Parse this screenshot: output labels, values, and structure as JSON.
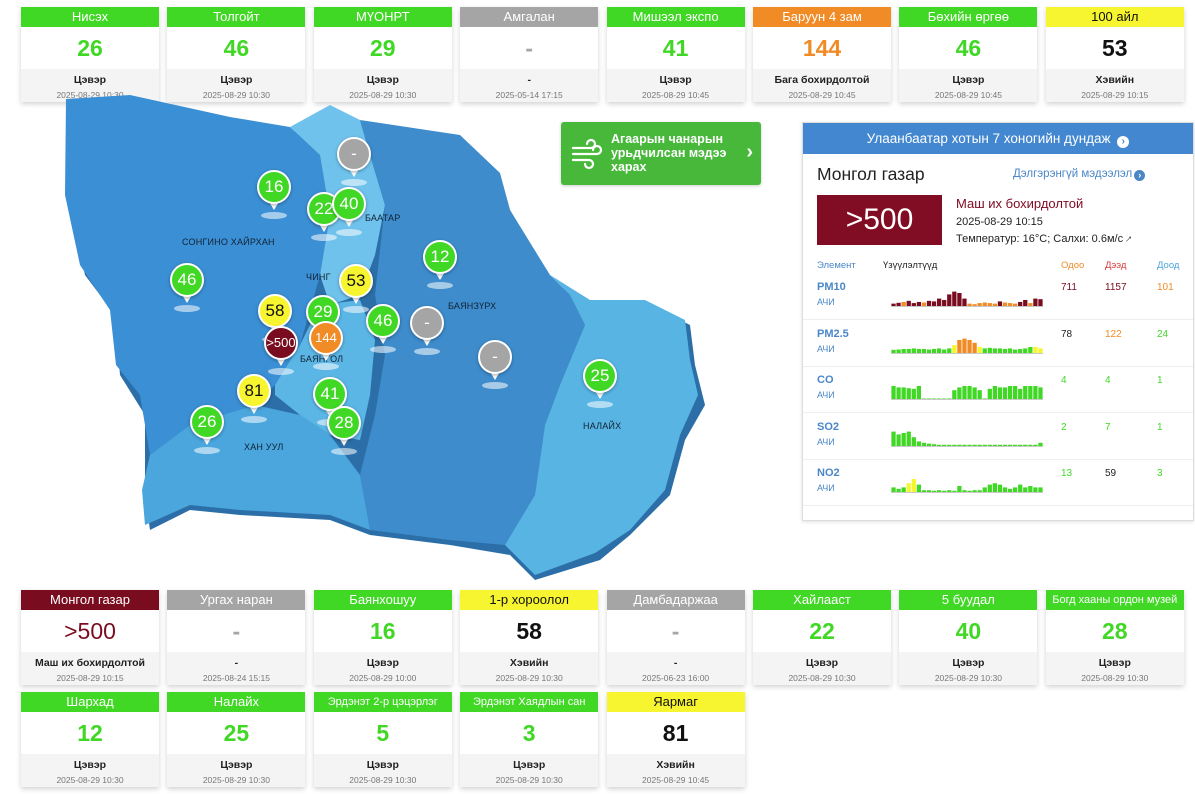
{
  "colors": {
    "green": "#41d725",
    "orange": "#f08b26",
    "yellow": "#f6f52f",
    "gray": "#a5a5a5",
    "maroon": "#7a0c1f",
    "blue": "#4287d0"
  },
  "top_cards": [
    {
      "name": "Нисэх",
      "value": "26",
      "status": "Цэвэр",
      "time": "2025-08-29 10:30",
      "level": "green"
    },
    {
      "name": "Толгойт",
      "value": "46",
      "status": "Цэвэр",
      "time": "2025-08-29 10:30",
      "level": "green"
    },
    {
      "name": "МҮОНРТ",
      "value": "29",
      "status": "Цэвэр",
      "time": "2025-08-29 10:30",
      "level": "green"
    },
    {
      "name": "Амгалан",
      "value": "-",
      "status": "-",
      "time": "2025-05-14 17:15",
      "level": "gray"
    },
    {
      "name": "Мишээл экспо",
      "value": "41",
      "status": "Цэвэр",
      "time": "2025-08-29 10:45",
      "level": "green"
    },
    {
      "name": "Баруун 4 зам",
      "value": "144",
      "status": "Бага бохирдолтой",
      "time": "2025-08-29 10:45",
      "level": "orange"
    },
    {
      "name": "Бөхийн өргөө",
      "value": "46",
      "status": "Цэвэр",
      "time": "2025-08-29 10:45",
      "level": "green"
    },
    {
      "name": "100 айл",
      "value": "53",
      "status": "Хэвийн",
      "time": "2025-08-29 10:15",
      "level": "yellow"
    }
  ],
  "bottom_cards": [
    {
      "name": "Монгол газар",
      "value": ">500",
      "status": "Маш их бохирдолтой",
      "time": "2025-08-29 10:15",
      "level": "maroon"
    },
    {
      "name": "Ургах наран",
      "value": "-",
      "status": "-",
      "time": "2025-08-24 15:15",
      "level": "gray"
    },
    {
      "name": "Баянхошуу",
      "value": "16",
      "status": "Цэвэр",
      "time": "2025-08-29 10:00",
      "level": "green"
    },
    {
      "name": "1-р хороолол",
      "value": "58",
      "status": "Хэвийн",
      "time": "2025-08-29 10:30",
      "level": "yellow"
    },
    {
      "name": "Дамбадаржаа",
      "value": "-",
      "status": "-",
      "time": "2025-06-23 16:00",
      "level": "gray"
    },
    {
      "name": "Хайлааст",
      "value": "22",
      "status": "Цэвэр",
      "time": "2025-08-29 10:30",
      "level": "green"
    },
    {
      "name": "5 буудал",
      "value": "40",
      "status": "Цэвэр",
      "time": "2025-08-29 10:30",
      "level": "green"
    },
    {
      "name": "Богд хааны ордон музей",
      "value": "28",
      "status": "Цэвэр",
      "time": "2025-08-29 10:30",
      "level": "green"
    },
    {
      "name": "Шархад",
      "value": "12",
      "status": "Цэвэр",
      "time": "2025-08-29 10:30",
      "level": "green"
    },
    {
      "name": "Налайх",
      "value": "25",
      "status": "Цэвэр",
      "time": "2025-08-29 10:30",
      "level": "green"
    },
    {
      "name": "Эрдэнэт 2-р цэцэрлэг",
      "value": "5",
      "status": "Цэвэр",
      "time": "2025-08-29 10:30",
      "level": "green"
    },
    {
      "name": "Эрдэнэт Хаядлын сан",
      "value": "3",
      "status": "Цэвэр",
      "time": "2025-08-29 10:30",
      "level": "green"
    },
    {
      "name": "Яармаг",
      "value": "81",
      "status": "Хэвийн",
      "time": "2025-08-29 10:45",
      "level": "yellow"
    }
  ],
  "map": {
    "district_labels": [
      "СОНГИНО ХАЙРХАН",
      "ЧИНГ",
      "БААТАР",
      "БАЯНЗҮРХ",
      "БАЯНГОЛ",
      "ХАН УУЛ",
      "НАЛАЙХ"
    ],
    "markers": [
      {
        "value": "16",
        "level": "green"
      },
      {
        "value": "22",
        "level": "green"
      },
      {
        "value": "40",
        "level": "green"
      },
      {
        "value": "-",
        "level": "gray"
      },
      {
        "value": "12",
        "level": "green"
      },
      {
        "value": "46",
        "level": "green"
      },
      {
        "value": "53",
        "level": "yellow"
      },
      {
        "value": "58",
        "level": "yellow"
      },
      {
        "value": "29",
        "level": "green"
      },
      {
        "value": ">500",
        "level": "maroon"
      },
      {
        "value": "144",
        "level": "orange"
      },
      {
        "value": "46",
        "level": "green"
      },
      {
        "value": "-",
        "level": "gray"
      },
      {
        "value": "-",
        "level": "gray"
      },
      {
        "value": "81",
        "level": "yellow"
      },
      {
        "value": "41",
        "level": "green"
      },
      {
        "value": "26",
        "level": "green"
      },
      {
        "value": "28",
        "level": "green"
      },
      {
        "value": "25",
        "level": "green"
      }
    ]
  },
  "forecast_button": {
    "label": "Агаарын чанарын урьдчилсан мэдээ харах",
    "icon": "wind-icon"
  },
  "panel": {
    "title": "Улаанбаатар хотын 7 хоногийн дундаж",
    "station": "Монгол газар",
    "more_link": "Дэлгэрэнгүй мэдээлэл",
    "value": ">500",
    "status": "Маш их бохирдолтой",
    "time": "2025-08-29 10:15",
    "weather": "Температур: 16°C; Салхи: 0.6м/с",
    "col_element": "Элемент",
    "col_indicators": "Үзүүлэлтүүд",
    "col_now": "Одоо",
    "col_max": "Дээд",
    "col_min": "Доод",
    "elements": [
      {
        "name": "PM10",
        "unit": "АЧИ",
        "now": "711",
        "max": "1157",
        "min": "101",
        "now_color": "#7a0c1f",
        "max_color": "#7a0c1f",
        "min_color": "#f08b26",
        "bars": [
          0.12,
          0.15,
          0.18,
          0.22,
          0.14,
          0.18,
          0.16,
          0.22,
          0.2,
          0.3,
          0.25,
          0.45,
          0.55,
          0.5,
          0.3,
          0.12,
          0.1,
          0.14,
          0.16,
          0.14,
          0.12,
          0.2,
          0.16,
          0.14,
          0.12,
          0.18,
          0.25,
          0.14,
          0.3,
          0.28
        ],
        "bar_levels": [
          "maroon",
          "maroon",
          "orange",
          "maroon",
          "maroon",
          "maroon",
          "orange",
          "maroon",
          "maroon",
          "maroon",
          "maroon",
          "maroon",
          "maroon",
          "maroon",
          "maroon",
          "orange",
          "orange",
          "orange",
          "orange",
          "orange",
          "orange",
          "maroon",
          "orange",
          "orange",
          "orange",
          "maroon",
          "maroon",
          "orange",
          "maroon",
          "maroon"
        ]
      },
      {
        "name": "PM2.5",
        "unit": "АЧИ",
        "now": "78",
        "max": "122",
        "min": "24",
        "now_color": "#222222",
        "max_color": "#f08b26",
        "min_color": "#41d725",
        "bars": [
          0.15,
          0.16,
          0.18,
          0.18,
          0.2,
          0.18,
          0.18,
          0.16,
          0.18,
          0.2,
          0.16,
          0.2,
          0.32,
          0.5,
          0.55,
          0.5,
          0.4,
          0.25,
          0.2,
          0.22,
          0.2,
          0.2,
          0.18,
          0.2,
          0.16,
          0.18,
          0.2,
          0.25,
          0.25,
          0.2
        ],
        "bar_levels": [
          "green",
          "green",
          "green",
          "green",
          "green",
          "green",
          "green",
          "green",
          "green",
          "green",
          "green",
          "green",
          "yellow",
          "orange",
          "orange",
          "orange",
          "orange",
          "yellow",
          "green",
          "green",
          "green",
          "green",
          "green",
          "green",
          "green",
          "green",
          "green",
          "green",
          "yellow",
          "yellow"
        ]
      },
      {
        "name": "CO",
        "unit": "АЧИ",
        "now": "4",
        "max": "4",
        "min": "1",
        "now_color": "#41d725",
        "max_color": "#41d725",
        "min_color": "#41d725",
        "bars": [
          0.5,
          0.45,
          0.45,
          0.42,
          0.4,
          0.5,
          0.05,
          0.05,
          0.05,
          0.05,
          0.05,
          0.05,
          0.35,
          0.45,
          0.5,
          0.5,
          0.45,
          0.35,
          0.05,
          0.4,
          0.5,
          0.45,
          0.45,
          0.5,
          0.5,
          0.4,
          0.5,
          0.5,
          0.5,
          0.45
        ],
        "bar_levels": [
          "green",
          "green",
          "green",
          "green",
          "green",
          "green",
          "green",
          "green",
          "green",
          "green",
          "green",
          "green",
          "green",
          "green",
          "green",
          "green",
          "green",
          "green",
          "green",
          "green",
          "green",
          "green",
          "green",
          "green",
          "green",
          "green",
          "green",
          "green",
          "green",
          "green"
        ]
      },
      {
        "name": "SO2",
        "unit": "АЧИ",
        "now": "2",
        "max": "7",
        "min": "1",
        "now_color": "#41d725",
        "max_color": "#41d725",
        "min_color": "#41d725",
        "bars": [
          0.55,
          0.45,
          0.5,
          0.55,
          0.35,
          0.2,
          0.15,
          0.12,
          0.1,
          0.08,
          0.08,
          0.08,
          0.08,
          0.08,
          0.08,
          0.08,
          0.08,
          0.08,
          0.08,
          0.08,
          0.08,
          0.08,
          0.08,
          0.08,
          0.08,
          0.08,
          0.08,
          0.08,
          0.08,
          0.15
        ],
        "bar_levels": [
          "green",
          "green",
          "green",
          "green",
          "green",
          "green",
          "green",
          "green",
          "green",
          "green",
          "green",
          "green",
          "green",
          "green",
          "green",
          "green",
          "green",
          "green",
          "green",
          "green",
          "green",
          "green",
          "green",
          "green",
          "green",
          "green",
          "green",
          "green",
          "green",
          "green"
        ]
      },
      {
        "name": "NO2",
        "unit": "АЧИ",
        "now": "13",
        "max": "59",
        "min": "3",
        "now_color": "#41d725",
        "max_color": "#222222",
        "min_color": "#41d725",
        "bars": [
          0.2,
          0.15,
          0.2,
          0.35,
          0.5,
          0.3,
          0.1,
          0.1,
          0.08,
          0.1,
          0.08,
          0.1,
          0.08,
          0.25,
          0.1,
          0.08,
          0.1,
          0.1,
          0.2,
          0.3,
          0.35,
          0.3,
          0.2,
          0.15,
          0.2,
          0.3,
          0.2,
          0.25,
          0.2,
          0.2
        ],
        "bar_levels": [
          "green",
          "green",
          "green",
          "yellow",
          "yellow",
          "green",
          "green",
          "green",
          "green",
          "green",
          "green",
          "green",
          "green",
          "green",
          "green",
          "green",
          "green",
          "green",
          "green",
          "green",
          "green",
          "green",
          "green",
          "green",
          "green",
          "green",
          "green",
          "green",
          "green",
          "green"
        ]
      }
    ]
  }
}
